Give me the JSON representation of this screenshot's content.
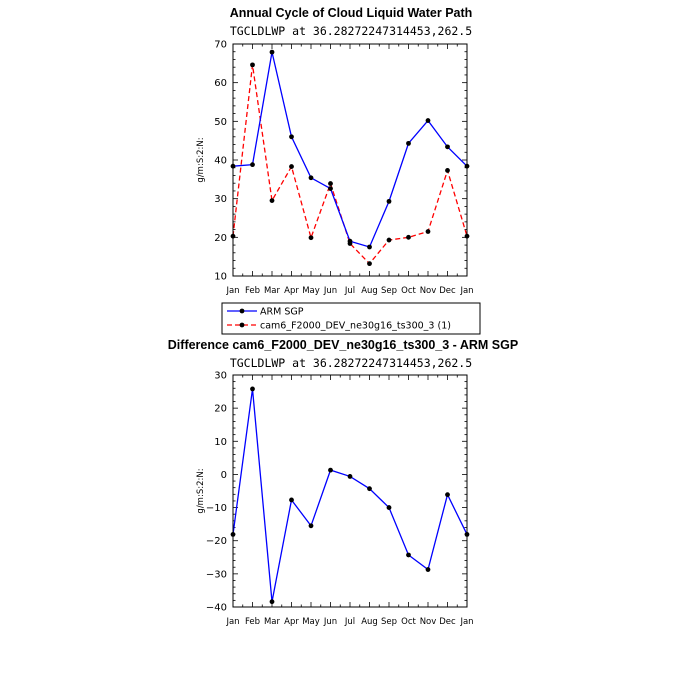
{
  "chart_data": [
    {
      "type": "line",
      "title": "Annual Cycle of Cloud Liquid Water Path",
      "subtitle": "TGCLDLWP at 36.28272247314453,262.5",
      "ylabel": "g/m:S:2:N:",
      "xlabel": "",
      "categories": [
        "Jan",
        "Feb",
        "Mar",
        "Apr",
        "May",
        "Jun",
        "Jul",
        "Aug",
        "Sep",
        "Oct",
        "Nov",
        "Dec",
        "Jan"
      ],
      "ylim": [
        10,
        70
      ],
      "yticks": [
        10,
        20,
        30,
        40,
        50,
        60,
        70
      ],
      "legend": "bottom",
      "series": [
        {
          "name": "ARM SGP",
          "color": "#0000ff",
          "dash": "solid",
          "values": [
            38.4,
            38.8,
            67.9,
            46.0,
            35.4,
            32.6,
            19.0,
            17.5,
            29.3,
            44.3,
            50.2,
            43.4,
            38.4
          ]
        },
        {
          "name": "cam6_F2000_DEV_ne30g16_ts300_3 (1)",
          "color": "#ff0000",
          "dash": "dashed",
          "values": [
            20.3,
            64.6,
            29.5,
            38.3,
            19.9,
            33.9,
            18.4,
            13.2,
            19.3,
            20.0,
            21.5,
            37.3,
            20.3
          ]
        }
      ]
    },
    {
      "type": "line",
      "title": "Difference cam6_F2000_DEV_ne30g16_ts300_3 - ARM SGP",
      "subtitle": "TGCLDLWP at 36.28272247314453,262.5",
      "ylabel": "g/m:S:2:N:",
      "xlabel": "",
      "categories": [
        "Jan",
        "Feb",
        "Mar",
        "Apr",
        "May",
        "Jun",
        "Jul",
        "Aug",
        "Sep",
        "Oct",
        "Nov",
        "Dec",
        "Jan"
      ],
      "ylim": [
        -40,
        30
      ],
      "yticks": [
        -40,
        -30,
        -20,
        -10,
        0,
        10,
        20,
        30
      ],
      "series": [
        {
          "color": "#0000ff",
          "dash": "solid",
          "values": [
            -18.1,
            25.8,
            -38.4,
            -7.7,
            -15.5,
            1.3,
            -0.6,
            -4.3,
            -10.0,
            -24.3,
            -28.7,
            -6.1,
            -18.1
          ]
        }
      ]
    }
  ]
}
